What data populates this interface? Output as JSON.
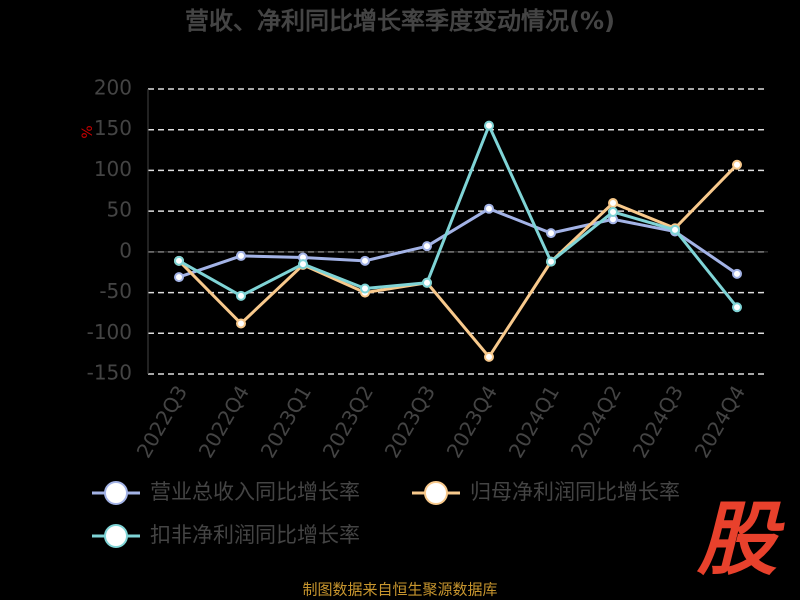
{
  "chart_data": {
    "type": "line",
    "title": "营收、净利同比增长率季度变动情况(%)",
    "y_label": "%",
    "categories": [
      "2022Q3",
      "2022Q4",
      "2023Q1",
      "2023Q2",
      "2023Q3",
      "2023Q4",
      "2024Q1",
      "2024Q2",
      "2024Q3",
      "2024Q4"
    ],
    "series": [
      {
        "name": "营业总收入同比增长率",
        "color": "#a3b3e6",
        "values": [
          -31,
          -5,
          -7,
          -11,
          7,
          53,
          23,
          40,
          25,
          -27
        ]
      },
      {
        "name": "归母净利润同比增长率",
        "color": "#f8c98c",
        "values": [
          -11,
          -88,
          -16,
          -50,
          -38,
          -129,
          -12,
          60,
          29,
          107
        ]
      },
      {
        "name": "扣非净利润同比增长率",
        "color": "#7fd4d6",
        "values": [
          -11,
          -54,
          -15,
          -45,
          -38,
          155,
          -12,
          49,
          27,
          -68
        ]
      }
    ],
    "ylim": [
      -150,
      200
    ],
    "yticks": [
      -150,
      -100,
      -50,
      0,
      50,
      100,
      150,
      200
    ],
    "grid": true,
    "source": "制图数据来自恒生聚源数据库",
    "logo": "股"
  }
}
